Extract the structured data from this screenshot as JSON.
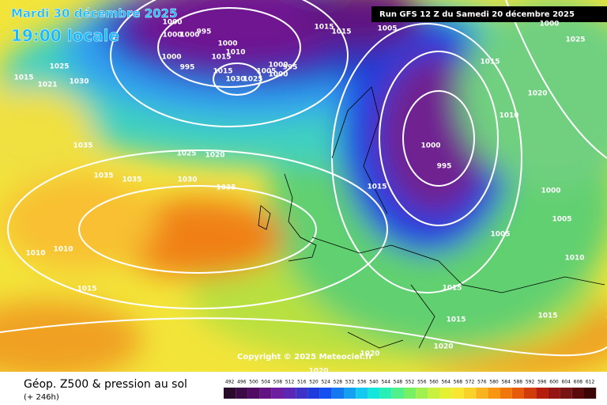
{
  "header": {
    "date": "Mardi 30 décembre 2025",
    "time": "19:00 locale",
    "run": "Run GFS 12 Z du Samedi 20 décembre 2025"
  },
  "copyright": "Copyright © 2025 Meteociel.fr",
  "footer": {
    "title": "Géop. Z500 & pression au sol",
    "lead": "(+ 246h)"
  },
  "scale": [
    "492",
    "496",
    "500",
    "504",
    "508",
    "512",
    "516",
    "520",
    "524",
    "528",
    "532",
    "536",
    "540",
    "544",
    "548",
    "552",
    "556",
    "560",
    "564",
    "568",
    "572",
    "576",
    "580",
    "584",
    "588",
    "592",
    "596",
    "600",
    "604",
    "608",
    "612"
  ],
  "isobar_labels": [
    "1000",
    "1000",
    "1000",
    "995",
    "1000",
    "1000",
    "995",
    "1015",
    "1010",
    "1015",
    "1030",
    "1025",
    "1000",
    "1005",
    "995",
    "1000",
    "1015",
    "1015",
    "1005",
    "1000",
    "1025",
    "1015",
    "1025",
    "1015",
    "1021",
    "1030",
    "1020",
    "1010",
    "1035",
    "1000",
    "995",
    "1025",
    "1020",
    "1035",
    "1035",
    "1030",
    "1035",
    "1015",
    "1000",
    "1005",
    "1005",
    "1010",
    "1010",
    "1010",
    "1015",
    "1015",
    "1015",
    "1015",
    "1020",
    "1020",
    "1020"
  ]
}
